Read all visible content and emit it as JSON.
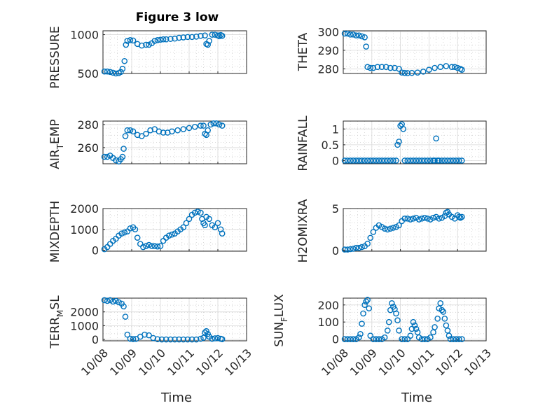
{
  "figure_title": "Figure 3 low",
  "marker_color": "#0072BD",
  "chart_data": [
    {
      "type": "scatter",
      "title": "Figure 3 low",
      "ylabel": "PRESSURE",
      "ylim": [
        500,
        1050
      ],
      "yticks": [
        500,
        1000
      ],
      "ytick_labels": [
        "500",
        "1000"
      ],
      "xlim": [
        0,
        5
      ],
      "x": [
        0.05,
        0.15,
        0.25,
        0.35,
        0.45,
        0.55,
        0.62,
        0.68,
        0.75,
        0.8,
        0.85,
        0.95,
        1.05,
        1.2,
        1.35,
        1.5,
        1.6,
        1.7,
        1.8,
        1.9,
        2.0,
        2.1,
        2.2,
        2.35,
        2.5,
        2.65,
        2.8,
        2.95,
        3.1,
        3.25,
        3.4,
        3.55,
        3.6,
        3.65,
        3.7,
        3.8,
        3.9,
        4.0,
        4.05,
        4.1,
        4.15
      ],
      "y": [
        525,
        525,
        520,
        510,
        500,
        505,
        520,
        560,
        660,
        870,
        920,
        930,
        925,
        880,
        860,
        870,
        870,
        890,
        920,
        930,
        935,
        940,
        940,
        945,
        950,
        960,
        965,
        970,
        970,
        975,
        985,
        990,
        880,
        870,
        920,
        1000,
        1000,
        990,
        980,
        995,
        985
      ]
    },
    {
      "type": "scatter",
      "ylabel": "THETA",
      "ylim": [
        277.5,
        300.5
      ],
      "yticks": [
        280,
        290,
        300
      ],
      "ytick_labels": [
        "280",
        "290",
        "300"
      ],
      "xlim": [
        0,
        5
      ],
      "x": [
        0.05,
        0.15,
        0.25,
        0.35,
        0.45,
        0.55,
        0.65,
        0.75,
        0.8,
        0.85,
        0.95,
        1.05,
        1.2,
        1.35,
        1.5,
        1.65,
        1.8,
        1.95,
        2.05,
        2.15,
        2.25,
        2.4,
        2.6,
        2.8,
        3.0,
        3.2,
        3.4,
        3.6,
        3.8,
        3.9,
        4.0,
        4.1,
        4.15
      ],
      "y": [
        299,
        299,
        298.5,
        298.5,
        298,
        298,
        297.5,
        297,
        292,
        281,
        280.5,
        280.5,
        281,
        281,
        281,
        280.5,
        280.5,
        280,
        278,
        277.8,
        277.7,
        277.8,
        278,
        278.5,
        279.5,
        280.5,
        281,
        281.5,
        281,
        281,
        280.5,
        280,
        279.5
      ]
    },
    {
      "type": "scatter",
      "ylabel": "AIR_TEMP",
      "ylim": [
        246,
        283
      ],
      "yticks": [
        260,
        280
      ],
      "ytick_labels": [
        "260",
        "280"
      ],
      "xlim": [
        0,
        5
      ],
      "x": [
        0.05,
        0.15,
        0.25,
        0.35,
        0.45,
        0.55,
        0.62,
        0.68,
        0.72,
        0.78,
        0.85,
        0.95,
        1.05,
        1.2,
        1.35,
        1.5,
        1.65,
        1.8,
        1.95,
        2.1,
        2.25,
        2.4,
        2.6,
        2.8,
        3.0,
        3.2,
        3.4,
        3.5,
        3.55,
        3.6,
        3.65,
        3.75,
        3.85,
        3.95,
        4.05,
        4.15
      ],
      "y": [
        252,
        252,
        253,
        251,
        249,
        248,
        250,
        252,
        259,
        270,
        275,
        275,
        274,
        271,
        270,
        272,
        275,
        276,
        274,
        273,
        273,
        274,
        275,
        276,
        277,
        278,
        279,
        279,
        272,
        271,
        275,
        280,
        281,
        281,
        280,
        279
      ]
    },
    {
      "type": "scatter",
      "ylabel": "RAINFALL",
      "ylim": [
        -0.1,
        1.25
      ],
      "yticks": [
        0,
        0.5,
        1
      ],
      "ytick_labels": [
        "0",
        "0.5",
        "1"
      ],
      "xlim": [
        0,
        5
      ],
      "x": [
        0.05,
        0.15,
        0.25,
        0.35,
        0.45,
        0.55,
        0.65,
        0.75,
        0.85,
        0.95,
        1.05,
        1.15,
        1.25,
        1.35,
        1.45,
        1.55,
        1.65,
        1.75,
        1.85,
        1.9,
        1.95,
        2.0,
        2.05,
        2.1,
        2.15,
        2.25,
        2.35,
        2.45,
        2.55,
        2.65,
        2.75,
        2.85,
        2.95,
        3.05,
        3.15,
        3.2,
        3.25,
        3.3,
        3.35,
        3.45,
        3.55,
        3.65,
        3.75,
        3.85,
        3.95,
        4.05,
        4.15
      ],
      "y": [
        0,
        0,
        0,
        0,
        0,
        0,
        0,
        0,
        0,
        0,
        0,
        0,
        0,
        0,
        0,
        0,
        0,
        0,
        0,
        0.5,
        0.6,
        1.1,
        1.15,
        1.0,
        0,
        0,
        0,
        0,
        0,
        0,
        0,
        0,
        0,
        0,
        0,
        0,
        0.7,
        0,
        0,
        0,
        0,
        0,
        0,
        0,
        0,
        0,
        0
      ]
    },
    {
      "type": "scatter",
      "ylabel": "MIXDEPTH",
      "ylim": [
        -50,
        2000
      ],
      "yticks": [
        0,
        1000,
        2000
      ],
      "ytick_labels": [
        "0",
        "1000",
        "2000"
      ],
      "xlim": [
        0,
        5
      ],
      "x": [
        0.05,
        0.15,
        0.25,
        0.35,
        0.45,
        0.55,
        0.65,
        0.75,
        0.85,
        0.95,
        1.05,
        1.12,
        1.2,
        1.3,
        1.4,
        1.5,
        1.6,
        1.7,
        1.8,
        1.9,
        2.0,
        2.1,
        2.2,
        2.3,
        2.4,
        2.5,
        2.6,
        2.7,
        2.8,
        2.9,
        3.0,
        3.1,
        3.2,
        3.3,
        3.4,
        3.45,
        3.5,
        3.55,
        3.6,
        3.7,
        3.8,
        3.9,
        4.0,
        4.1,
        4.15
      ],
      "y": [
        50,
        150,
        300,
        450,
        550,
        700,
        800,
        850,
        900,
        1050,
        1100,
        1000,
        600,
        300,
        150,
        200,
        250,
        200,
        200,
        180,
        200,
        450,
        600,
        700,
        750,
        800,
        900,
        1000,
        1100,
        1300,
        1500,
        1700,
        1800,
        1850,
        1800,
        1500,
        1300,
        1200,
        1600,
        1500,
        1200,
        1100,
        1300,
        1000,
        800
      ]
    },
    {
      "type": "scatter",
      "ylabel": "H2OMIXRA",
      "ylim": [
        -0.1,
        5
      ],
      "yticks": [
        0,
        5
      ],
      "ytick_labels": [
        "0",
        "5"
      ],
      "xlim": [
        0,
        5
      ],
      "x": [
        0.05,
        0.15,
        0.25,
        0.35,
        0.45,
        0.55,
        0.65,
        0.75,
        0.85,
        0.95,
        1.05,
        1.15,
        1.25,
        1.35,
        1.45,
        1.55,
        1.65,
        1.75,
        1.85,
        1.95,
        2.05,
        2.15,
        2.25,
        2.35,
        2.45,
        2.55,
        2.65,
        2.75,
        2.85,
        2.95,
        3.05,
        3.15,
        3.25,
        3.35,
        3.45,
        3.55,
        3.6,
        3.65,
        3.7,
        3.8,
        3.9,
        4.0,
        4.05,
        4.1,
        4.15
      ],
      "y": [
        0.1,
        0.1,
        0.15,
        0.2,
        0.3,
        0.3,
        0.4,
        0.5,
        0.8,
        1.5,
        2.2,
        2.7,
        3.0,
        2.8,
        2.6,
        2.5,
        2.6,
        2.7,
        2.8,
        3.0,
        3.5,
        3.8,
        3.8,
        3.7,
        3.8,
        3.9,
        3.7,
        3.8,
        3.9,
        3.8,
        3.7,
        3.9,
        4.0,
        3.8,
        3.9,
        4.1,
        4.5,
        4.6,
        4.3,
        4.0,
        3.8,
        4.2,
        4.0,
        3.9,
        4.0
      ]
    },
    {
      "type": "scatter",
      "ylabel": "TERR_MSL",
      "ylim": [
        -100,
        3000
      ],
      "yticks": [
        0,
        1000,
        2000
      ],
      "ytick_labels": [
        "0",
        "1000",
        "2000"
      ],
      "xlim": [
        0,
        5
      ],
      "x": [
        0.05,
        0.15,
        0.25,
        0.35,
        0.45,
        0.55,
        0.65,
        0.72,
        0.78,
        0.85,
        0.95,
        1.05,
        1.15,
        1.3,
        1.45,
        1.6,
        1.75,
        1.9,
        2.05,
        2.2,
        2.35,
        2.5,
        2.65,
        2.8,
        2.95,
        3.1,
        3.25,
        3.4,
        3.5,
        3.55,
        3.6,
        3.65,
        3.7,
        3.8,
        3.9,
        4.0,
        4.1,
        4.15
      ],
      "y": [
        2850,
        2800,
        2850,
        2750,
        2800,
        2700,
        2600,
        2400,
        1650,
        350,
        50,
        30,
        40,
        200,
        350,
        300,
        100,
        20,
        0,
        0,
        0,
        0,
        0,
        0,
        0,
        0,
        0,
        50,
        120,
        500,
        600,
        400,
        200,
        50,
        80,
        100,
        50,
        20
      ]
    },
    {
      "type": "scatter",
      "ylabel": "SUN_FLUX",
      "ylim": [
        -10,
        240
      ],
      "yticks": [
        0,
        100,
        200
      ],
      "ytick_labels": [
        "0",
        "100",
        "200"
      ],
      "xlim": [
        0,
        5
      ],
      "x": [
        0.05,
        0.15,
        0.25,
        0.35,
        0.45,
        0.55,
        0.6,
        0.65,
        0.7,
        0.75,
        0.8,
        0.85,
        0.9,
        0.95,
        1.05,
        1.15,
        1.25,
        1.35,
        1.45,
        1.55,
        1.6,
        1.65,
        1.7,
        1.75,
        1.8,
        1.85,
        1.9,
        1.95,
        2.05,
        2.15,
        2.25,
        2.35,
        2.4,
        2.45,
        2.5,
        2.55,
        2.6,
        2.65,
        2.75,
        2.85,
        2.95,
        3.05,
        3.15,
        3.2,
        3.3,
        3.35,
        3.4,
        3.45,
        3.5,
        3.55,
        3.6,
        3.65,
        3.7,
        3.75,
        3.85,
        3.95,
        4.05,
        4.15
      ],
      "y": [
        0,
        0,
        0,
        0,
        0,
        10,
        30,
        90,
        150,
        200,
        220,
        230,
        180,
        20,
        0,
        0,
        0,
        0,
        10,
        50,
        100,
        170,
        210,
        190,
        175,
        150,
        110,
        50,
        0,
        0,
        0,
        20,
        60,
        100,
        80,
        60,
        40,
        10,
        0,
        0,
        0,
        10,
        40,
        70,
        120,
        180,
        210,
        170,
        160,
        120,
        80,
        50,
        20,
        0,
        0,
        0,
        0,
        0
      ]
    }
  ],
  "x_tick_labels": [
    "10/08",
    "10/09",
    "10/10",
    "10/11",
    "10/12",
    "10/13"
  ],
  "xlabel_left": "Time",
  "xlabel_right": "Time",
  "ylabel_parts": {
    "air_temp": {
      "a": "AIR",
      "b": "T",
      "c": "EMP"
    },
    "terr_msl": {
      "a": "TERR",
      "b": "M",
      "c": "SL"
    },
    "sun_flux": {
      "a": "SUN",
      "b": "F",
      "c": "LUX"
    }
  }
}
